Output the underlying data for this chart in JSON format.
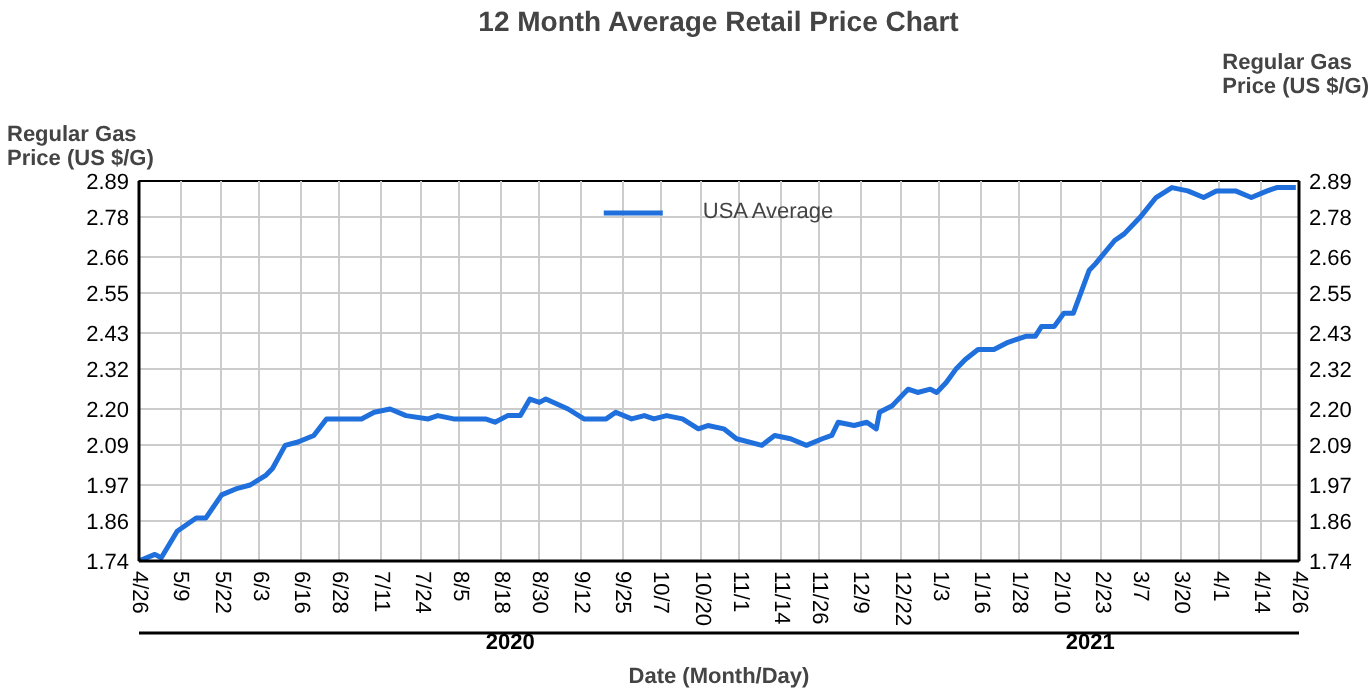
{
  "chart_data": {
    "type": "line",
    "title": "12 Month Average Retail Price Chart",
    "xlabel": "Date (Month/Day)",
    "ylabel": "Regular Gas Price (US $/G)",
    "y2label": "Regular Gas Price (US $/G)",
    "annotations": [
      "2020",
      "2021"
    ],
    "xlim": [
      "2020-04-26",
      "2021-04-26"
    ],
    "xticks": [
      {
        "value": "2020-04-26",
        "label": "4/26"
      },
      {
        "value": "2020-05-09",
        "label": "5/9"
      },
      {
        "value": "2020-05-22",
        "label": "5/22"
      },
      {
        "value": "2020-06-03",
        "label": "6/3"
      },
      {
        "value": "2020-06-16",
        "label": "6/16"
      },
      {
        "value": "2020-06-28",
        "label": "6/28"
      },
      {
        "value": "2020-07-11",
        "label": "7/11"
      },
      {
        "value": "2020-07-24",
        "label": "7/24"
      },
      {
        "value": "2020-08-05",
        "label": "8/5"
      },
      {
        "value": "2020-08-18",
        "label": "8/18"
      },
      {
        "value": "2020-08-30",
        "label": "8/30"
      },
      {
        "value": "2020-09-12",
        "label": "9/12"
      },
      {
        "value": "2020-09-25",
        "label": "9/25"
      },
      {
        "value": "2020-10-07",
        "label": "10/7"
      },
      {
        "value": "2020-10-20",
        "label": "10/20"
      },
      {
        "value": "2020-11-01",
        "label": "11/1"
      },
      {
        "value": "2020-11-14",
        "label": "11/14"
      },
      {
        "value": "2020-11-26",
        "label": "11/26"
      },
      {
        "value": "2020-12-09",
        "label": "12/9"
      },
      {
        "value": "2020-12-22",
        "label": "12/22"
      },
      {
        "value": "2021-01-03",
        "label": "1/3"
      },
      {
        "value": "2021-01-16",
        "label": "1/16"
      },
      {
        "value": "2021-01-28",
        "label": "1/28"
      },
      {
        "value": "2021-02-10",
        "label": "2/10"
      },
      {
        "value": "2021-02-23",
        "label": "2/23"
      },
      {
        "value": "2021-03-07",
        "label": "3/7"
      },
      {
        "value": "2021-03-20",
        "label": "3/20"
      },
      {
        "value": "2021-04-01",
        "label": "4/1"
      },
      {
        "value": "2021-04-14",
        "label": "4/14"
      },
      {
        "value": "2021-04-26",
        "label": "4/26"
      }
    ],
    "ylim": [
      1.74,
      2.89
    ],
    "yticks": [
      1.74,
      1.86,
      1.97,
      2.09,
      {
        "value": 2.2,
        "label": "2.20"
      },
      2.32,
      2.43,
      2.55,
      2.66,
      2.78,
      2.89
    ],
    "y2lim": [
      1.74,
      2.89
    ],
    "y2ticks": [
      1.74,
      1.86,
      1.97,
      2.09,
      {
        "value": 2.2,
        "label": "2.20"
      },
      2.32,
      2.43,
      2.55,
      2.66,
      2.78,
      2.89
    ],
    "grid": true,
    "legend": "top right",
    "marker": "none",
    "line_style": "solid",
    "series": [
      {
        "name": "USA Average",
        "color": "#1f6fdc",
        "x": [
          "2020-04-26",
          "2020-05-01",
          "2020-05-03",
          "2020-05-08",
          "2020-05-14",
          "2020-05-17",
          "2020-05-22",
          "2020-05-27",
          "2020-05-31",
          "2020-06-05",
          "2020-06-07",
          "2020-06-11",
          "2020-06-15",
          "2020-06-20",
          "2020-06-24",
          "2020-06-30",
          "2020-07-05",
          "2020-07-09",
          "2020-07-14",
          "2020-07-19",
          "2020-07-26",
          "2020-07-29",
          "2020-08-03",
          "2020-08-08",
          "2020-08-13",
          "2020-08-16",
          "2020-08-20",
          "2020-08-24",
          "2020-08-27",
          "2020-08-30",
          "2020-09-01",
          "2020-09-08",
          "2020-09-13",
          "2020-09-20",
          "2020-09-23",
          "2020-09-28",
          "2020-10-02",
          "2020-10-05",
          "2020-10-09",
          "2020-10-14",
          "2020-10-19",
          "2020-10-22",
          "2020-10-27",
          "2020-10-31",
          "2020-11-08",
          "2020-11-12",
          "2020-11-17",
          "2020-11-22",
          "2020-11-27",
          "2020-11-30",
          "2020-12-02",
          "2020-12-07",
          "2020-12-11",
          "2020-12-14",
          "2020-12-15",
          "2020-12-19",
          "2020-12-20",
          "2020-12-24",
          "2020-12-27",
          "2020-12-31",
          "2021-01-02",
          "2021-01-05",
          "2021-01-08",
          "2021-01-11",
          "2021-01-15",
          "2021-01-20",
          "2021-01-24",
          "2021-01-30",
          "2021-02-02",
          "2021-02-04",
          "2021-02-08",
          "2021-02-11",
          "2021-02-14",
          "2021-02-19",
          "2021-02-21",
          "2021-02-27",
          "2021-03-02",
          "2021-03-07",
          "2021-03-12",
          "2021-03-17",
          "2021-03-22",
          "2021-03-27",
          "2021-03-31",
          "2021-04-06",
          "2021-04-11",
          "2021-04-16",
          "2021-04-19",
          "2021-04-23",
          "2021-04-25"
        ],
        "values": [
          1.74,
          1.76,
          1.75,
          1.83,
          1.87,
          1.87,
          1.94,
          1.96,
          1.97,
          2.0,
          2.02,
          2.09,
          2.1,
          2.12,
          2.17,
          2.17,
          2.17,
          2.19,
          2.2,
          2.18,
          2.17,
          2.18,
          2.17,
          2.17,
          2.17,
          2.16,
          2.18,
          2.18,
          2.23,
          2.22,
          2.23,
          2.2,
          2.17,
          2.17,
          2.19,
          2.17,
          2.18,
          2.17,
          2.18,
          2.17,
          2.14,
          2.15,
          2.14,
          2.11,
          2.09,
          2.12,
          2.11,
          2.09,
          2.11,
          2.12,
          2.16,
          2.15,
          2.16,
          2.14,
          2.19,
          2.21,
          2.22,
          2.26,
          2.25,
          2.26,
          2.25,
          2.28,
          2.32,
          2.35,
          2.38,
          2.38,
          2.4,
          2.42,
          2.42,
          2.45,
          2.45,
          2.49,
          2.49,
          2.62,
          2.64,
          2.71,
          2.73,
          2.78,
          2.84,
          2.87,
          2.86,
          2.84,
          2.86,
          2.86,
          2.84,
          2.86,
          2.87,
          2.87,
          2.87
        ]
      }
    ]
  }
}
